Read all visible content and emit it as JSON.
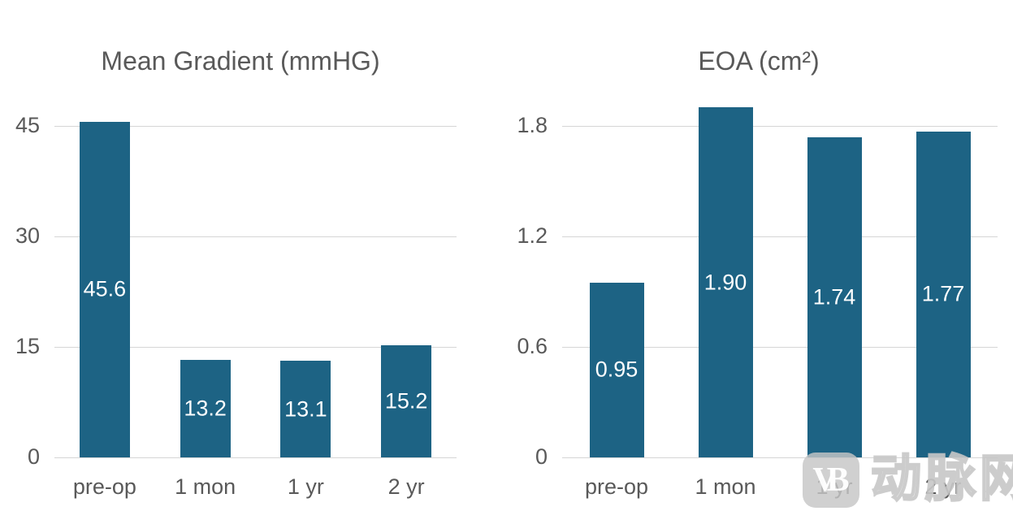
{
  "figure": {
    "background": "#ffffff",
    "title_color": "#595959",
    "axis_label_color": "#595959",
    "gridline_color": "#d6d6d6"
  },
  "watermark": {
    "logo_text": "VB",
    "text": "动脉网",
    "color": "#c6c6c6"
  },
  "chart_data": [
    {
      "type": "bar",
      "title": "Mean Gradient (mmHG)",
      "categories": [
        "pre-op",
        "1 mon",
        "1 yr",
        "2 yr"
      ],
      "values": [
        45.6,
        13.2,
        13.1,
        15.2
      ],
      "value_labels": [
        "45.6",
        "13.2",
        "13.1",
        "15.2"
      ],
      "ticks": [
        0,
        15,
        30,
        45
      ],
      "tick_labels": [
        "0",
        "15",
        "30",
        "45"
      ],
      "ylim": [
        0,
        47.75
      ],
      "xlabel": "",
      "ylabel": "",
      "grid": true,
      "legend": false,
      "bar_color": "#1d6384",
      "value_label_color": "#ffffff",
      "value_label_position": "center-of-bar"
    },
    {
      "type": "bar",
      "title": "EOA (cm²)",
      "categories": [
        "pre-op",
        "1 mon",
        "1 yr",
        "2 yr"
      ],
      "values": [
        0.95,
        1.9,
        1.74,
        1.77
      ],
      "value_labels": [
        "0.95",
        "1.90",
        "1.74",
        "1.77"
      ],
      "ticks": [
        0,
        0.6,
        1.2,
        1.8
      ],
      "tick_labels": [
        "0",
        "0.6",
        "1.2",
        "1.8"
      ],
      "ylim": [
        0,
        1.91
      ],
      "xlabel": "",
      "ylabel": "",
      "grid": true,
      "legend": false,
      "bar_color": "#1d6384",
      "value_label_color": "#ffffff",
      "value_label_position": "center-of-bar"
    }
  ]
}
